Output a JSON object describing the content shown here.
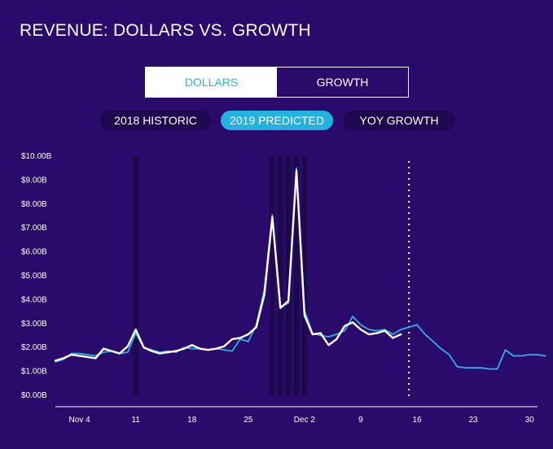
{
  "header": {
    "title": "REVENUE: DOLLARS VS. GROWTH"
  },
  "toggle": {
    "dollars_label": "DOLLARS",
    "growth_label": "GROWTH"
  },
  "series_buttons": {
    "historic_label": "2018 HISTORIC",
    "predicted_label": "2019 PREDICTED",
    "yoy_label": "YOY GROWTH"
  },
  "colors": {
    "background": "#2a0a6b",
    "historic_line": "#ffffff",
    "predicted_line": "#2bb3e0",
    "highlight_band": "#1a0a45"
  },
  "chart_data": {
    "type": "line",
    "title": "",
    "xlabel": "",
    "ylabel": "",
    "ylim": [
      0,
      10
    ],
    "yticks": [
      "$0.00B",
      "$1.00B",
      "$2.00B",
      "$3.00B",
      "$4.00B",
      "$5.00B",
      "$6.00B",
      "$7.00B",
      "$8.00B",
      "$9.00B",
      "$10.00B"
    ],
    "xticks": [
      "Nov 4",
      "11",
      "18",
      "25",
      "Dec 2",
      "9",
      "16",
      "23",
      "30"
    ],
    "x_start": "Nov 1",
    "x_end": "Dec 31",
    "highlighted_dates": [
      "Nov 11",
      "Nov 28",
      "Nov 29",
      "Nov 30",
      "Dec 1",
      "Dec 2"
    ],
    "today_marker": "Dec 15",
    "series": [
      {
        "name": "2018 HISTORIC",
        "color": "#ffffff",
        "values": [
          1.45,
          1.55,
          1.7,
          1.65,
          1.6,
          1.55,
          1.95,
          1.85,
          1.75,
          2.05,
          2.75,
          2.0,
          1.85,
          1.75,
          1.8,
          1.85,
          1.95,
          2.1,
          1.95,
          1.9,
          1.95,
          2.05,
          2.35,
          2.4,
          2.55,
          2.85,
          4.2,
          7.45,
          3.65,
          3.95,
          9.4,
          3.35,
          2.55,
          2.6,
          2.1,
          2.35,
          2.9,
          3.05,
          2.75,
          2.55,
          2.6,
          2.7,
          2.4,
          2.55
        ]
      },
      {
        "name": "2019 PREDICTED",
        "color": "#2bb3e0",
        "values": [
          1.4,
          1.5,
          1.75,
          1.75,
          1.7,
          1.65,
          1.8,
          1.85,
          1.75,
          1.8,
          2.6,
          2.0,
          1.9,
          1.8,
          1.85,
          1.8,
          2.0,
          1.95,
          1.95,
          1.9,
          1.95,
          1.9,
          1.85,
          2.35,
          2.25,
          2.95,
          4.4,
          7.55,
          3.7,
          3.85,
          9.5,
          3.55,
          2.6,
          2.5,
          2.45,
          2.55,
          2.7,
          3.3,
          2.95,
          2.75,
          2.7,
          2.75,
          2.55,
          2.75,
          2.85,
          2.95,
          2.55,
          2.25,
          1.95,
          1.7,
          1.2,
          1.15,
          1.15,
          1.15,
          1.1,
          1.1,
          1.9,
          1.65,
          1.65,
          1.7,
          1.7,
          1.65
        ]
      }
    ]
  }
}
